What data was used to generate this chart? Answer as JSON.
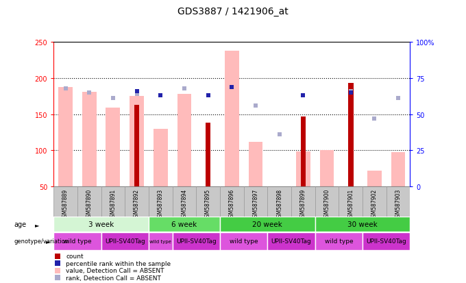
{
  "title": "GDS3887 / 1421906_at",
  "samples": [
    "GSM587889",
    "GSM587890",
    "GSM587891",
    "GSM587892",
    "GSM587893",
    "GSM587894",
    "GSM587895",
    "GSM587896",
    "GSM587897",
    "GSM587898",
    "GSM587899",
    "GSM587900",
    "GSM587901",
    "GSM587902",
    "GSM587903"
  ],
  "count_bars": [
    {
      "idx": 3,
      "val": 163
    },
    {
      "idx": 6,
      "val": 138
    },
    {
      "idx": 10,
      "val": 147
    },
    {
      "idx": 12,
      "val": 193
    }
  ],
  "value_absent": [
    188,
    181,
    159,
    175,
    130,
    178,
    null,
    238,
    112,
    null,
    99,
    100,
    null,
    72,
    98
  ],
  "rank_absent_pct": [
    68,
    65,
    61,
    64,
    null,
    68,
    63,
    69,
    56,
    36,
    null,
    null,
    66,
    47,
    61
  ],
  "percentile_rank": [
    {
      "idx": 3,
      "pct": 66
    },
    {
      "idx": 4,
      "pct": 63
    },
    {
      "idx": 6,
      "pct": 63
    },
    {
      "idx": 7,
      "pct": 69
    },
    {
      "idx": 10,
      "pct": 63
    },
    {
      "idx": 12,
      "pct": 65
    }
  ],
  "age_groups": [
    {
      "label": "3 week",
      "start": 0,
      "end": 4,
      "color": "#d4f5d4"
    },
    {
      "label": "6 week",
      "start": 4,
      "end": 7,
      "color": "#66dd66"
    },
    {
      "label": "20 week",
      "start": 7,
      "end": 11,
      "color": "#44cc44"
    },
    {
      "label": "30 week",
      "start": 11,
      "end": 15,
      "color": "#44cc44"
    }
  ],
  "genotype_groups": [
    {
      "label": "wild type",
      "start": 0,
      "end": 2,
      "color": "#dd55dd"
    },
    {
      "label": "UPII-SV40Tag",
      "start": 2,
      "end": 4,
      "color": "#cc33cc"
    },
    {
      "label": "wild type",
      "start": 4,
      "end": 5,
      "color": "#dd55dd"
    },
    {
      "label": "UPII-SV40Tag",
      "start": 5,
      "end": 7,
      "color": "#cc33cc"
    },
    {
      "label": "wild type",
      "start": 7,
      "end": 9,
      "color": "#dd55dd"
    },
    {
      "label": "UPII-SV40Tag",
      "start": 9,
      "end": 11,
      "color": "#cc33cc"
    },
    {
      "label": "wild type",
      "start": 11,
      "end": 13,
      "color": "#dd55dd"
    },
    {
      "label": "UPII-SV40Tag",
      "start": 13,
      "end": 15,
      "color": "#cc33cc"
    }
  ],
  "ylim_left": [
    50,
    250
  ],
  "ylim_right": [
    0,
    100
  ],
  "yticks_left": [
    50,
    100,
    150,
    200,
    250
  ],
  "yticks_right": [
    0,
    25,
    50,
    75,
    100
  ],
  "color_count": "#bb0000",
  "color_pct_rank": "#2222aa",
  "color_value_absent": "#ffbbbb",
  "color_rank_absent": "#aaaacc",
  "grid_dotted_at": [
    100,
    150,
    200
  ]
}
